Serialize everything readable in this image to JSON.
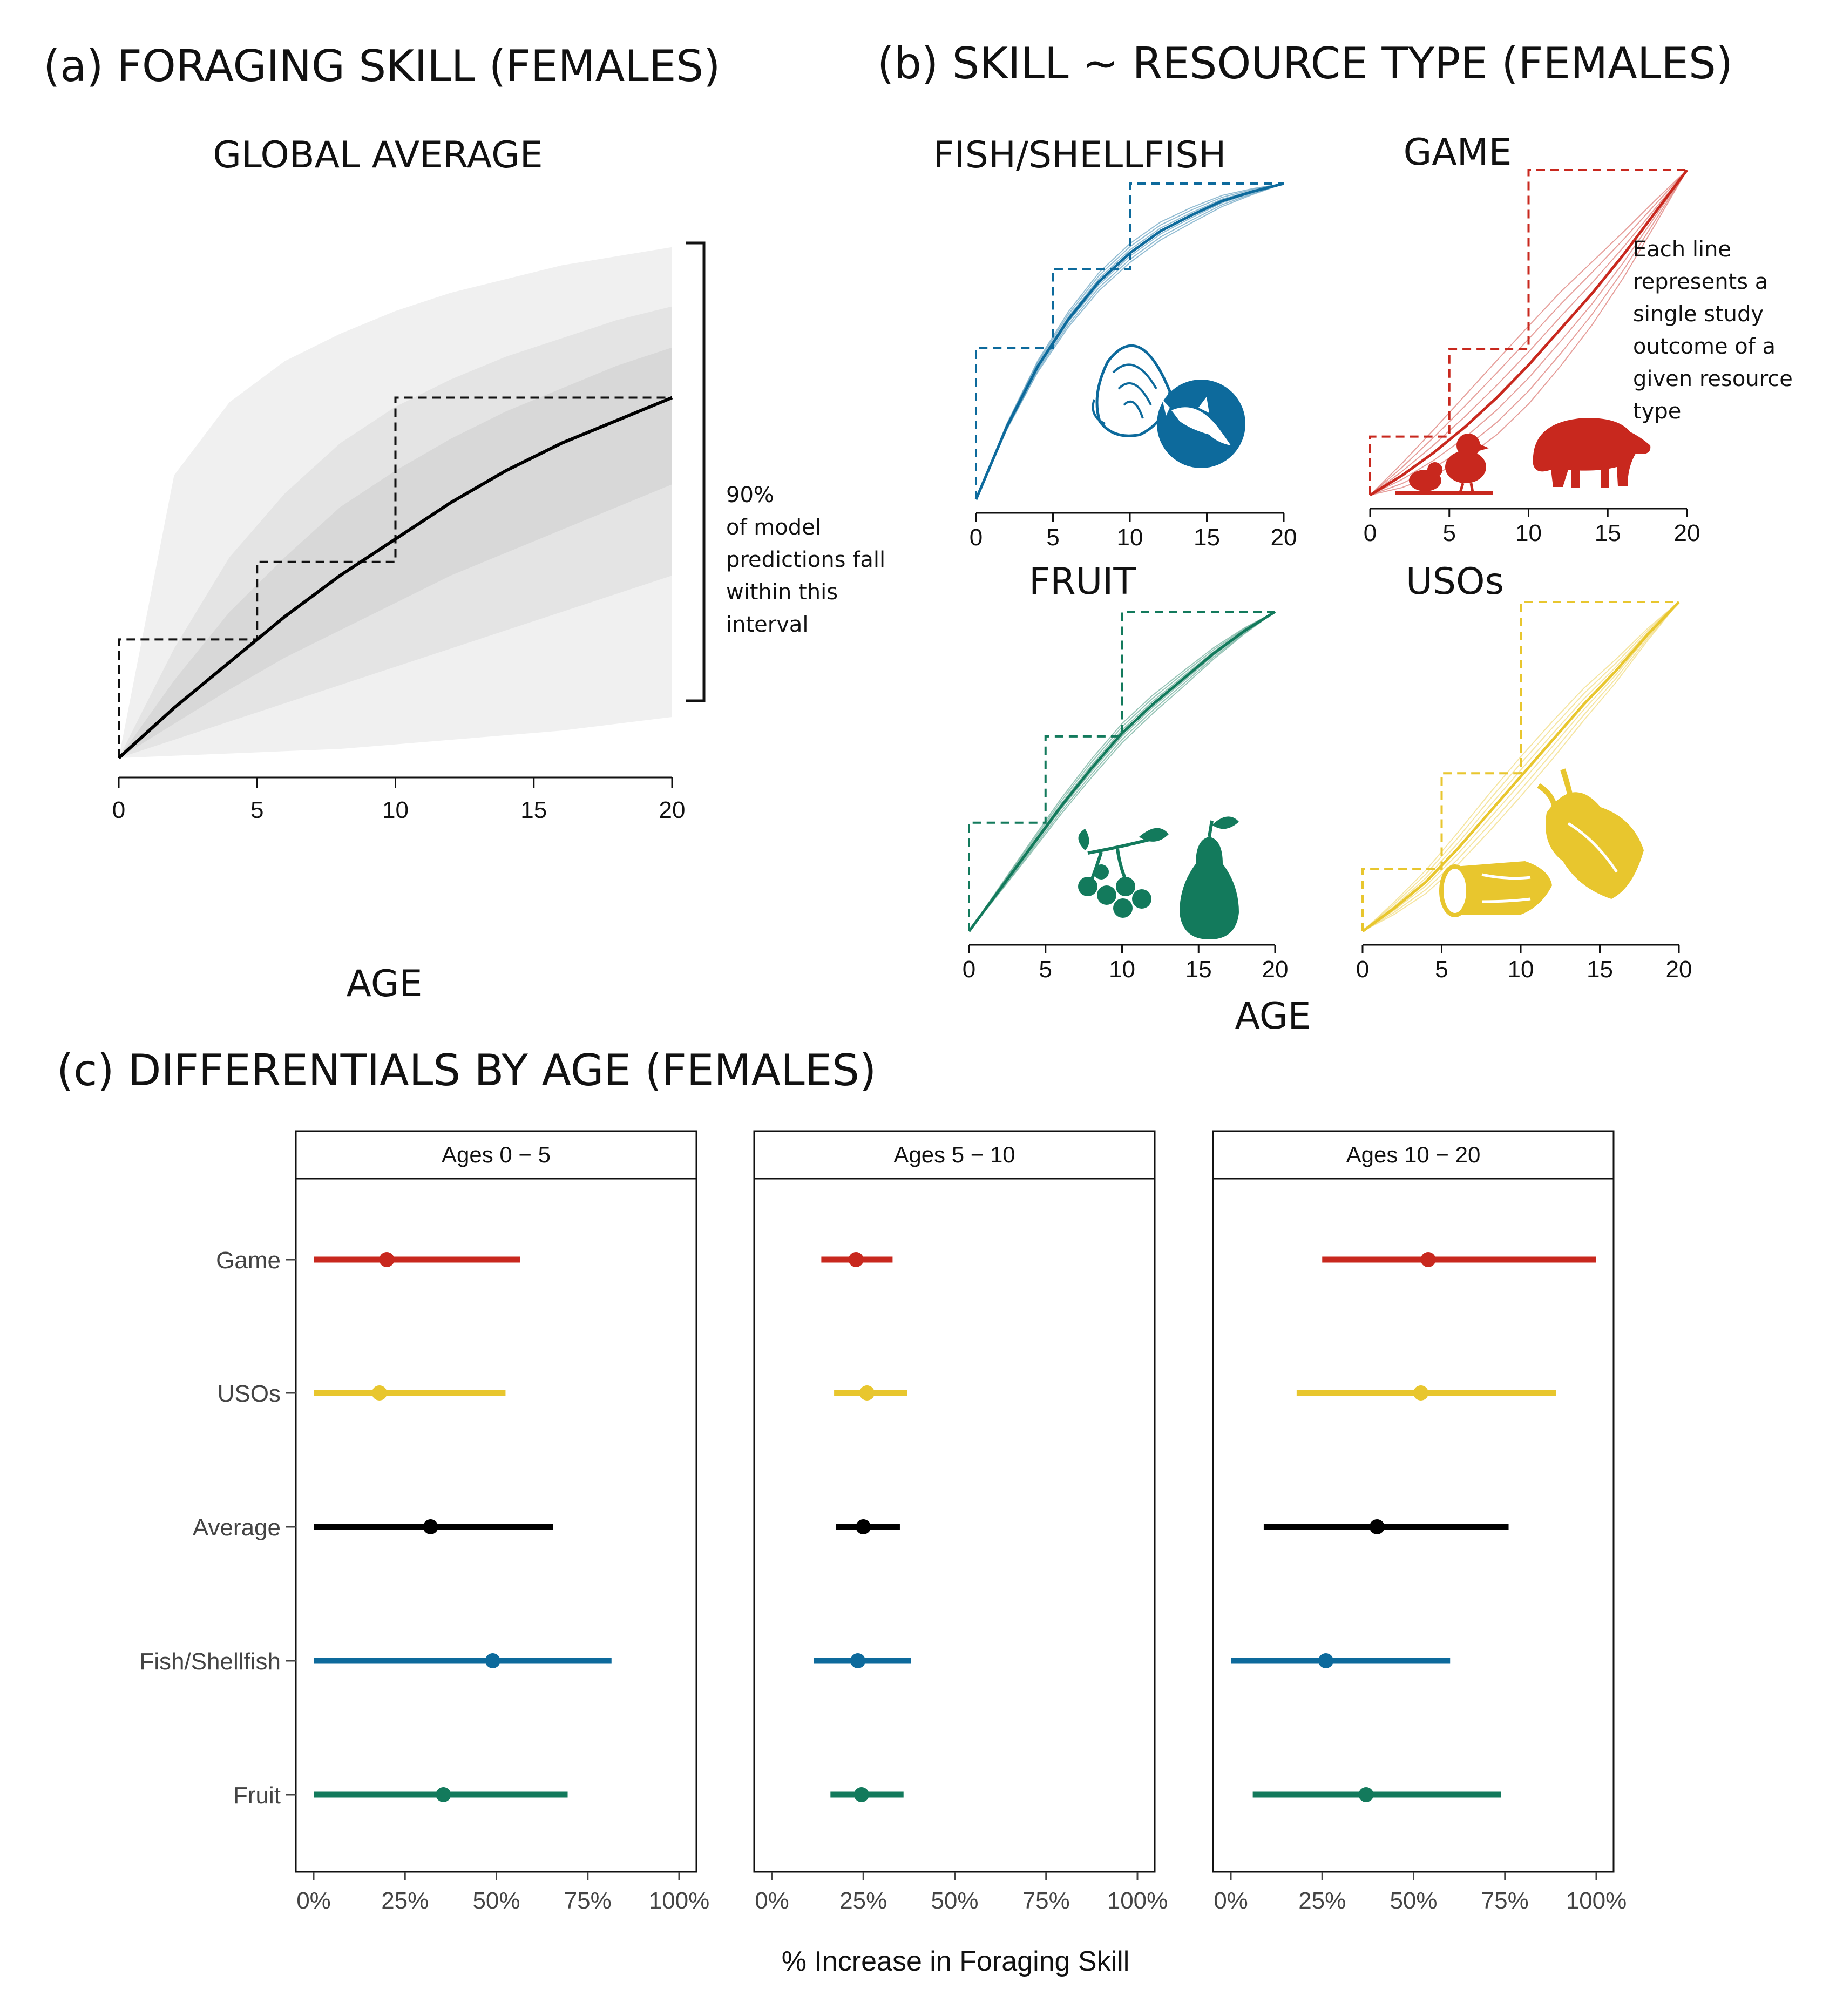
{
  "colors": {
    "game": "#c8281e",
    "usos": "#e8c62e",
    "average": "#000000",
    "fish": "#0d6a9c",
    "fruit": "#137a5c",
    "band_outer": "#f0f0f0",
    "band_mid": "#e4e4e4",
    "band_inner": "#d8d8d8"
  },
  "panel_a": {
    "heading": "(a) FORAGING SKILL (FEMALES)",
    "subtitle": "GLOBAL AVERAGE",
    "xlabel": "AGE",
    "note_lines": [
      "90%",
      "of model",
      "predictions fall",
      "within this",
      "interval"
    ]
  },
  "panel_b": {
    "heading": "(b) SKILL ~ RESOURCE TYPE (FEMALES)",
    "xlabel": "AGE",
    "note_lines": [
      "Each line",
      "represents a",
      "single study",
      "outcome of a",
      "given resource",
      "type"
    ],
    "icons": {
      "fish": [
        "shell-icon",
        "fish-icon"
      ],
      "game": [
        "bird-icon",
        "tapir-icon"
      ],
      "fruit": [
        "berries-icon",
        "pear-icon"
      ],
      "usos": [
        "tuber-icon",
        "root-icon"
      ]
    }
  },
  "panel_c": {
    "heading": "(c) DIFFERENTIALS BY AGE (FEMALES)",
    "xlabel": "% Increase in Foraging Skill"
  },
  "chart_data": [
    {
      "id": "a",
      "type": "line",
      "title": "GLOBAL AVERAGE",
      "xlabel": "AGE",
      "xlim": [
        0,
        20
      ],
      "xticks": [
        0,
        5,
        10,
        15,
        20
      ],
      "ylim": [
        0,
        1
      ],
      "x": [
        0,
        2,
        4,
        6,
        8,
        10,
        12,
        14,
        16,
        18,
        20
      ],
      "series": [
        {
          "values": [
            0,
            0.11,
            0.21,
            0.31,
            0.4,
            0.48,
            0.56,
            0.63,
            0.69,
            0.74,
            0.79
          ]
        }
      ],
      "step_x": [
        0,
        5,
        10,
        20
      ],
      "step_y": [
        0.26,
        0.43,
        0.79,
        0.79
      ],
      "bands": [
        {
          "level": "outer",
          "lower": [
            0,
            0.005,
            0.01,
            0.015,
            0.02,
            0.03,
            0.04,
            0.05,
            0.06,
            0.075,
            0.09
          ],
          "upper": [
            0,
            0.62,
            0.78,
            0.87,
            0.93,
            0.98,
            1.02,
            1.05,
            1.08,
            1.1,
            1.12
          ]
        },
        {
          "level": "mid",
          "lower": [
            0,
            0.04,
            0.08,
            0.12,
            0.16,
            0.2,
            0.24,
            0.28,
            0.32,
            0.36,
            0.4
          ],
          "upper": [
            0,
            0.24,
            0.44,
            0.58,
            0.69,
            0.77,
            0.83,
            0.88,
            0.92,
            0.96,
            0.99
          ]
        },
        {
          "level": "inner",
          "lower": [
            0,
            0.075,
            0.15,
            0.22,
            0.28,
            0.34,
            0.4,
            0.45,
            0.5,
            0.55,
            0.6
          ],
          "upper": [
            0,
            0.17,
            0.32,
            0.44,
            0.55,
            0.63,
            0.7,
            0.76,
            0.81,
            0.86,
            0.9
          ]
        }
      ]
    },
    {
      "id": "b-fish",
      "type": "line",
      "title": "FISH/SHELLFISH",
      "xlim": [
        0,
        20
      ],
      "xticks": [
        0,
        5,
        10,
        15,
        20
      ],
      "color": "fish",
      "x": [
        0,
        2,
        4,
        6,
        8,
        10,
        12,
        14,
        16,
        18,
        20
      ],
      "values": [
        0,
        0.23,
        0.42,
        0.57,
        0.69,
        0.78,
        0.85,
        0.9,
        0.945,
        0.975,
        1.0
      ],
      "step_x": [
        0,
        5,
        10,
        20
      ],
      "step_y": [
        0.48,
        0.73,
        1.0,
        1.0
      ],
      "spread": 0.03
    },
    {
      "id": "b-game",
      "type": "line",
      "title": "GAME",
      "xlim": [
        0,
        20
      ],
      "xticks": [
        0,
        5,
        10,
        15,
        20
      ],
      "color": "game",
      "x": [
        0,
        2,
        4,
        6,
        8,
        10,
        12,
        14,
        16,
        18,
        20
      ],
      "values": [
        0,
        0.06,
        0.13,
        0.21,
        0.3,
        0.4,
        0.51,
        0.62,
        0.74,
        0.87,
        1.0
      ],
      "step_x": [
        0,
        5,
        10,
        20
      ],
      "step_y": [
        0.18,
        0.45,
        1.0,
        1.0
      ],
      "spread": 0.12
    },
    {
      "id": "b-fruit",
      "type": "line",
      "title": "FRUIT",
      "xlim": [
        0,
        20
      ],
      "xticks": [
        0,
        5,
        10,
        15,
        20
      ],
      "color": "fruit",
      "x": [
        0,
        2,
        4,
        6,
        8,
        10,
        12,
        14,
        16,
        18,
        20
      ],
      "values": [
        0,
        0.13,
        0.26,
        0.39,
        0.51,
        0.62,
        0.71,
        0.79,
        0.87,
        0.94,
        1.0
      ],
      "step_x": [
        0,
        5,
        10,
        20
      ],
      "step_y": [
        0.34,
        0.61,
        1.0,
        1.0
      ],
      "spread": 0.03
    },
    {
      "id": "b-usos",
      "type": "line",
      "title": "USOs",
      "xlim": [
        0,
        20
      ],
      "xticks": [
        0,
        5,
        10,
        15,
        20
      ],
      "color": "usos",
      "x": [
        0,
        2,
        4,
        6,
        8,
        10,
        12,
        14,
        16,
        18,
        20
      ],
      "values": [
        0,
        0.07,
        0.15,
        0.25,
        0.36,
        0.47,
        0.58,
        0.69,
        0.79,
        0.9,
        1.0
      ],
      "step_x": [
        0,
        5,
        10,
        20
      ],
      "step_y": [
        0.19,
        0.48,
        1.0,
        1.0
      ],
      "spread": 0.06
    },
    {
      "id": "c",
      "type": "scatter",
      "title": "",
      "xlabel": "% Increase in Foraging Skill",
      "xlim": [
        0,
        100
      ],
      "xticks": [
        "0%",
        "25%",
        "50%",
        "75%",
        "100%"
      ],
      "facets": [
        "Ages 0 − 5",
        "Ages 5 − 10",
        "Ages 10 − 20"
      ],
      "categories": [
        "Game",
        "USOs",
        "Average",
        "Fish/Shellfish",
        "Fruit"
      ],
      "category_colors": [
        "game",
        "usos",
        "average",
        "fish",
        "fruit"
      ],
      "estimates": [
        [
          20,
          18,
          32,
          49,
          35.5
        ],
        [
          23,
          26,
          25,
          23.5,
          24.5
        ],
        [
          54,
          52,
          40,
          26,
          37
        ]
      ],
      "lower": [
        [
          0,
          0,
          0,
          0,
          0
        ],
        [
          13.5,
          17,
          17.5,
          11.5,
          16
        ],
        [
          25,
          18,
          9,
          0,
          6
        ]
      ],
      "upper": [
        [
          56.5,
          52.5,
          65.5,
          81.5,
          69.5
        ],
        [
          33,
          37,
          35,
          38,
          36
        ],
        [
          100,
          89,
          76,
          60,
          74
        ]
      ]
    }
  ]
}
